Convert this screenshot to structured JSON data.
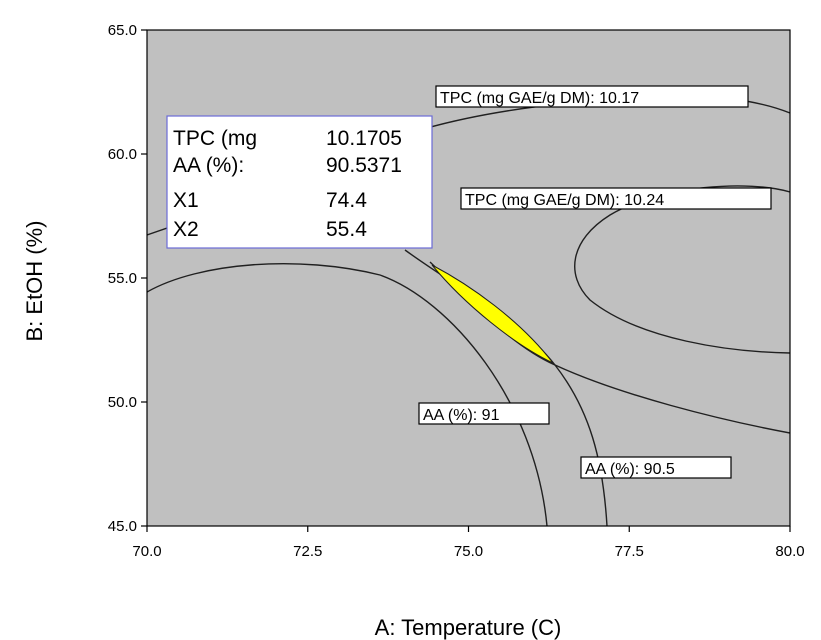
{
  "chart_data": {
    "type": "contour",
    "xlabel": "A: Temperature (C)",
    "ylabel": "B: EtOH (%)",
    "xlim": [
      70.0,
      80.0
    ],
    "ylim": [
      45.0,
      65.0
    ],
    "x_ticks": [
      "70.0",
      "72.5",
      "75.0",
      "77.5",
      "80.0"
    ],
    "y_ticks": [
      "45.0",
      "50.0",
      "55.0",
      "60.0",
      "65.0"
    ],
    "plot_background": "#c0c0c0",
    "feasible_region_color": "#ffff00",
    "contour_labels": [
      {
        "text": "TPC (mg GAE/g DM): 10.17"
      },
      {
        "text": "TPC (mg GAE/g DM): 10.24"
      },
      {
        "text": "AA (%): 91"
      },
      {
        "text": "AA (%): 90.5"
      }
    ],
    "flag": {
      "rows": [
        {
          "label": "TPC (mg",
          "value": "10.1705"
        },
        {
          "label": "AA (%):",
          "value": "90.5371"
        },
        {
          "label": "X1",
          "value": "74.4"
        },
        {
          "label": "X2",
          "value": "55.4"
        }
      ]
    }
  }
}
